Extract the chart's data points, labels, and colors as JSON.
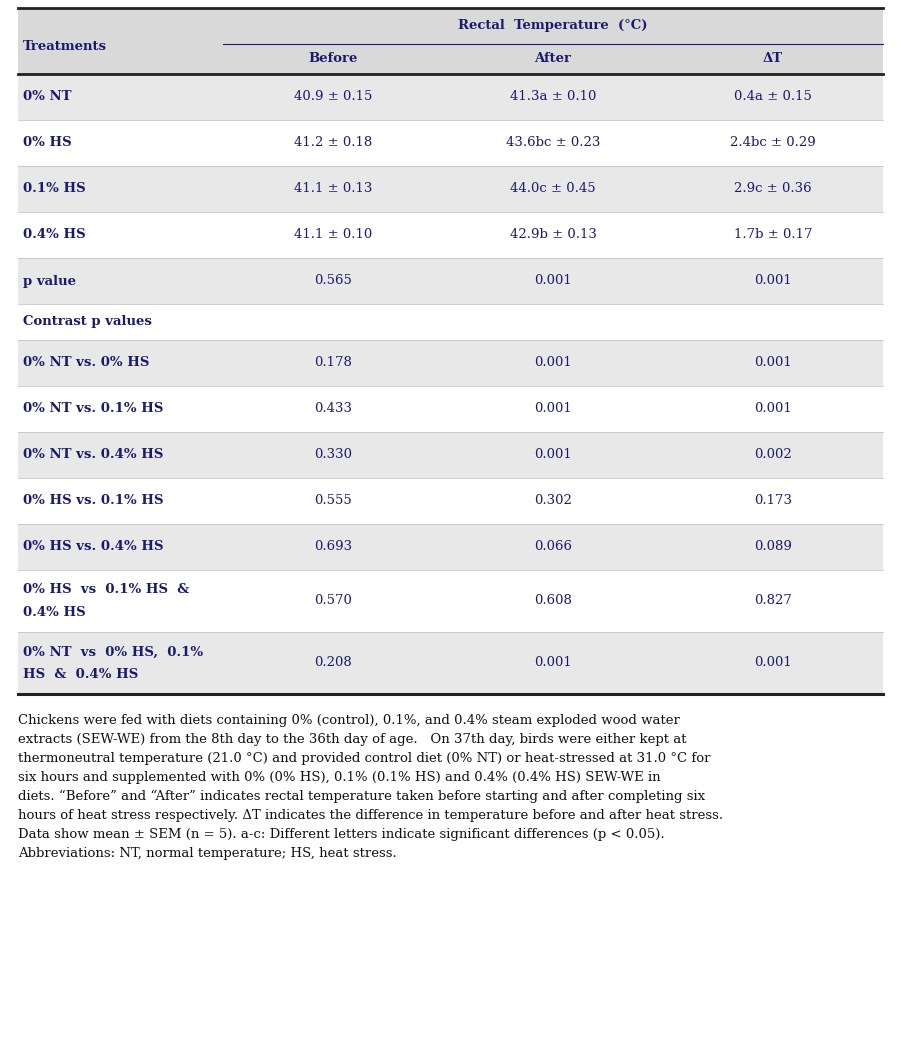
{
  "col_header_top": "Rectal  Temperature  (°C)",
  "col_header_sub": [
    "Before",
    "After",
    "ΔT"
  ],
  "row_label_header": "Treatments",
  "table_rows": [
    {
      "label": "0% NT",
      "before": "40.9 ± 0.15",
      "after": "41.3a ± 0.10",
      "delta": "0.4a ± 0.15",
      "shaded": true
    },
    {
      "label": "0% HS",
      "before": "41.2 ± 0.18",
      "after": "43.6bc ± 0.23",
      "delta": "2.4bc ± 0.29",
      "shaded": false
    },
    {
      "label": "0.1% HS",
      "before": "41.1 ± 0.13",
      "after": "44.0c ± 0.45",
      "delta": "2.9c ± 0.36",
      "shaded": true
    },
    {
      "label": "0.4% HS",
      "before": "41.1 ± 0.10",
      "after": "42.9b ± 0.13",
      "delta": "1.7b ± 0.17",
      "shaded": false
    },
    {
      "label": "p value",
      "before": "0.565",
      "after": "0.001",
      "delta": "0.001",
      "shaded": true
    }
  ],
  "section_label": "Contrast p values",
  "contrast_rows": [
    {
      "label": "0% NT vs. 0% HS",
      "label2": "",
      "before": "0.178",
      "after": "0.001",
      "delta": "0.001",
      "shaded": true,
      "multiline": false
    },
    {
      "label": "0% NT vs. 0.1% HS",
      "label2": "",
      "before": "0.433",
      "after": "0.001",
      "delta": "0.001",
      "shaded": false,
      "multiline": false
    },
    {
      "label": "0% NT vs. 0.4% HS",
      "label2": "",
      "before": "0.330",
      "after": "0.001",
      "delta": "0.002",
      "shaded": true,
      "multiline": false
    },
    {
      "label": "0% HS vs. 0.1% HS",
      "label2": "",
      "before": "0.555",
      "after": "0.302",
      "delta": "0.173",
      "shaded": false,
      "multiline": false
    },
    {
      "label": "0% HS vs. 0.4% HS",
      "label2": "",
      "before": "0.693",
      "after": "0.066",
      "delta": "0.089",
      "shaded": true,
      "multiline": false
    },
    {
      "label": "0% HS  vs  0.1% HS  &",
      "label2": "0.4% HS",
      "before": "0.570",
      "after": "0.608",
      "delta": "0.827",
      "shaded": false,
      "multiline": true
    },
    {
      "label": "0% NT  vs  0% HS,  0.1%",
      "label2": "HS  &  0.4% HS",
      "before": "0.208",
      "after": "0.001",
      "delta": "0.001",
      "shaded": true,
      "multiline": true
    }
  ],
  "footer_lines": [
    "Chickens were fed with diets containing 0% (control), 0.1%, and 0.4% steam exploded wood water",
    "extracts (SEW-WE) from the 8th day to the 36th day of age.   On 37th day, birds were either kept at",
    "thermoneutral temperature (21.0 °C) and provided control diet (0% NT) or heat-stressed at 31.0 °C for",
    "six hours and supplemented with 0% (0% HS), 0.1% (0.1% HS) and 0.4% (0.4% HS) SEW-WE in",
    "diets. “Before” and “After” indicates rectal temperature taken before starting and after completing six",
    "hours of heat stress respectively. ΔT indicates the difference in temperature before and after heat stress.",
    "Data show mean ± SEM (n = 5). a-c: Different letters indicate significant differences (p < 0.05).",
    "Abbreviations: NT, normal temperature; HS, heat stress."
  ],
  "bg_color_header": "#d9d9d9",
  "bg_color_shaded": "#e8e8e8",
  "bg_color_white": "#ffffff",
  "text_color": "#1a1a6e",
  "font_size": 9.5,
  "footer_font_size": 9.5
}
